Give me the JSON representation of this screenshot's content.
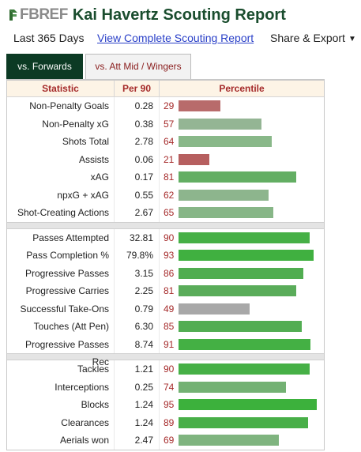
{
  "header": {
    "logo_text": "FBREF",
    "title": "Kai Havertz Scouting Report"
  },
  "subnav": {
    "period": "Last 365 Days",
    "full_report_link": "View Complete Scouting Report",
    "share_label": "Share & Export",
    "share_caret": "▼"
  },
  "tabs": [
    {
      "label": "vs. Forwards",
      "active": true
    },
    {
      "label": "vs. Att Mid / Wingers",
      "active": false
    }
  ],
  "table": {
    "headers": {
      "statistic": "Statistic",
      "per90": "Per 90",
      "percentile": "Percentile"
    },
    "groups": [
      {
        "rows": [
          {
            "stat": "Non-Penalty Goals",
            "per90": "0.28",
            "percentile": 29,
            "color": "#b86b6b"
          },
          {
            "stat": "Non-Penalty xG",
            "per90": "0.38",
            "percentile": 57,
            "color": "#94b594"
          },
          {
            "stat": "Shots Total",
            "per90": "2.78",
            "percentile": 64,
            "color": "#89b889"
          },
          {
            "stat": "Assists",
            "per90": "0.06",
            "percentile": 21,
            "color": "#b65f5f"
          },
          {
            "stat": "xAG",
            "per90": "0.17",
            "percentile": 81,
            "color": "#63ae63"
          },
          {
            "stat": "npxG + xAG",
            "per90": "0.55",
            "percentile": 62,
            "color": "#8db58d"
          },
          {
            "stat": "Shot-Creating Actions",
            "per90": "2.67",
            "percentile": 65,
            "color": "#87b687"
          }
        ]
      },
      {
        "rows": [
          {
            "stat": "Passes Attempted",
            "per90": "32.81",
            "percentile": 90,
            "color": "#46b046"
          },
          {
            "stat": "Pass Completion %",
            "per90": "79.8%",
            "percentile": 93,
            "color": "#40b040"
          },
          {
            "stat": "Progressive Passes",
            "per90": "3.15",
            "percentile": 86,
            "color": "#50ad50"
          },
          {
            "stat": "Progressive Carries",
            "per90": "2.25",
            "percentile": 81,
            "color": "#5aac5a"
          },
          {
            "stat": "Successful Take-Ons",
            "per90": "0.79",
            "percentile": 49,
            "color": "#a8a8a8"
          },
          {
            "stat": "Touches (Att Pen)",
            "per90": "6.30",
            "percentile": 85,
            "color": "#52ad52"
          },
          {
            "stat": "Progressive Passes Rec",
            "per90": "8.74",
            "percentile": 91,
            "color": "#44b044"
          }
        ]
      },
      {
        "rows": [
          {
            "stat": "Tackles",
            "per90": "1.21",
            "percentile": 90,
            "color": "#46b046"
          },
          {
            "stat": "Interceptions",
            "per90": "0.25",
            "percentile": 74,
            "color": "#73b173"
          },
          {
            "stat": "Blocks",
            "per90": "1.24",
            "percentile": 95,
            "color": "#3cb13c"
          },
          {
            "stat": "Clearances",
            "per90": "1.24",
            "percentile": 89,
            "color": "#48af48"
          },
          {
            "stat": "Aerials won",
            "per90": "2.47",
            "percentile": 69,
            "color": "#7fb47f"
          }
        ]
      }
    ]
  }
}
